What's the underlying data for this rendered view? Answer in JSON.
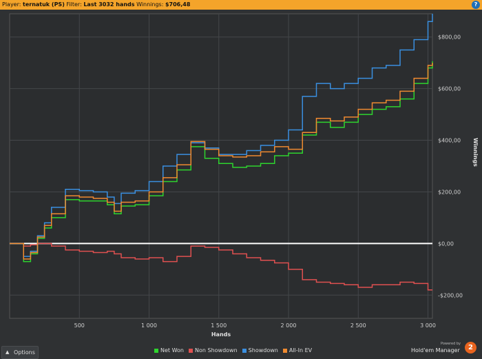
{
  "header": {
    "player_label": "Player:",
    "player_name": "ternatuk (PS)",
    "filter_label": "Filter:",
    "filter_value": "Last 3032 hands",
    "winnings_label": "Winnings:",
    "winnings_value": "$706,48",
    "help_icon": "question-icon"
  },
  "footer": {
    "options_label": "Options",
    "powered_by": "Powered by",
    "brand": "Hold'em Manager",
    "brand_badge": "2"
  },
  "chart_data": {
    "type": "line",
    "xlabel": "Hands",
    "ylabel": "Winnings",
    "xlim": [
      0,
      3032
    ],
    "ylim": [
      -290,
      890
    ],
    "x_ticks": [
      500,
      1000,
      1500,
      2000,
      2500,
      3000
    ],
    "x_tick_labels": [
      "500",
      "1 000",
      "1 500",
      "2 000",
      "2 500",
      "3 000"
    ],
    "y_ticks": [
      -200,
      0,
      200,
      400,
      600,
      800
    ],
    "y_tick_labels": [
      "-$200,00",
      "$0,00",
      "$200,00",
      "$400,00",
      "$600,00",
      "$800,00"
    ],
    "grid": true,
    "legend_position": "bottom",
    "x": [
      0,
      100,
      150,
      200,
      250,
      300,
      400,
      500,
      600,
      700,
      750,
      800,
      900,
      1000,
      1100,
      1200,
      1300,
      1400,
      1500,
      1600,
      1700,
      1800,
      1900,
      2000,
      2100,
      2200,
      2300,
      2400,
      2500,
      2600,
      2700,
      2800,
      2900,
      3000,
      3032
    ],
    "series": [
      {
        "name": "Net Won",
        "color": "#2ed52e",
        "values": [
          0,
          -70,
          -40,
          20,
          60,
          100,
          170,
          165,
          165,
          150,
          115,
          145,
          150,
          185,
          240,
          285,
          375,
          330,
          310,
          295,
          300,
          310,
          340,
          350,
          420,
          470,
          450,
          470,
          500,
          520,
          530,
          560,
          620,
          680,
          706
        ]
      },
      {
        "name": "Non Showdown",
        "color": "#e05050",
        "values": [
          0,
          -10,
          -5,
          0,
          0,
          -10,
          -25,
          -30,
          -35,
          -30,
          -40,
          -55,
          -60,
          -55,
          -70,
          -50,
          -10,
          -15,
          -25,
          -40,
          -55,
          -65,
          -75,
          -100,
          -140,
          -150,
          -155,
          -160,
          -170,
          -160,
          -160,
          -150,
          -155,
          -180,
          -180
        ]
      },
      {
        "name": "Showdown",
        "color": "#3a8fe0",
        "values": [
          0,
          -50,
          -30,
          30,
          80,
          140,
          210,
          205,
          200,
          180,
          155,
          195,
          205,
          240,
          300,
          345,
          390,
          370,
          345,
          345,
          360,
          380,
          400,
          440,
          570,
          620,
          600,
          620,
          640,
          680,
          690,
          750,
          790,
          860,
          890
        ]
      },
      {
        "name": "All-In EV",
        "color": "#f08a30",
        "values": [
          0,
          -60,
          -35,
          25,
          70,
          115,
          185,
          180,
          175,
          160,
          125,
          160,
          165,
          200,
          255,
          305,
          395,
          365,
          340,
          335,
          340,
          355,
          375,
          365,
          430,
          485,
          475,
          490,
          520,
          545,
          555,
          590,
          640,
          690,
          700
        ]
      }
    ]
  }
}
